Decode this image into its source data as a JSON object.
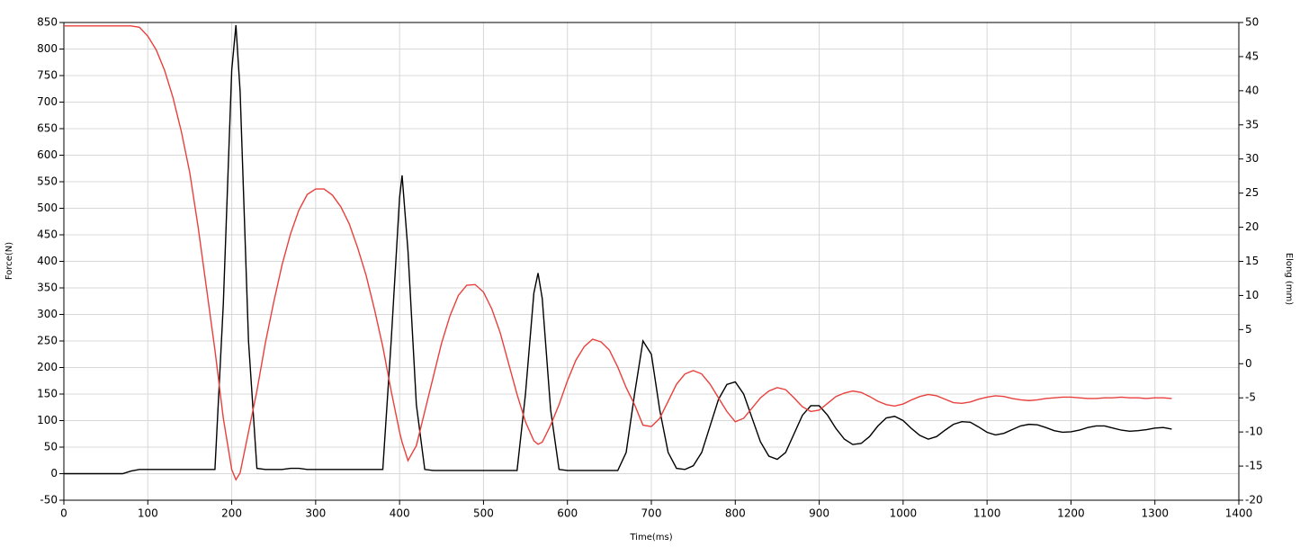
{
  "chart_data": {
    "type": "line",
    "xlabel": "Time(ms)",
    "ylabel": "Force(N)",
    "y2label": "Elong (mm)",
    "xlim": [
      0,
      1400
    ],
    "xticks": [
      0,
      100,
      200,
      300,
      400,
      500,
      600,
      700,
      800,
      900,
      1000,
      1100,
      1200,
      1300,
      1400
    ],
    "ylim": [
      -50,
      850
    ],
    "yticks": [
      -50,
      0,
      50,
      100,
      150,
      200,
      250,
      300,
      350,
      400,
      450,
      500,
      550,
      600,
      650,
      700,
      750,
      800,
      850
    ],
    "y2lim": [
      -20,
      50
    ],
    "y2ticks": [
      -20,
      -15,
      -10,
      -5,
      0,
      5,
      10,
      15,
      20,
      25,
      30,
      35,
      40,
      45,
      50
    ],
    "grid": true,
    "x": [
      0,
      10,
      20,
      30,
      40,
      50,
      60,
      70,
      80,
      90,
      100,
      110,
      120,
      130,
      140,
      150,
      160,
      170,
      180,
      190,
      200,
      205,
      210,
      220,
      230,
      240,
      250,
      260,
      270,
      280,
      290,
      300,
      310,
      320,
      330,
      340,
      350,
      360,
      370,
      380,
      390,
      400,
      403,
      410,
      420,
      430,
      440,
      450,
      460,
      470,
      480,
      490,
      500,
      510,
      520,
      530,
      540,
      550,
      560,
      565,
      570,
      580,
      590,
      600,
      610,
      620,
      630,
      640,
      650,
      660,
      670,
      680,
      690,
      700,
      710,
      720,
      730,
      740,
      750,
      760,
      770,
      780,
      790,
      800,
      810,
      820,
      830,
      840,
      850,
      860,
      870,
      880,
      890,
      900,
      910,
      920,
      930,
      940,
      950,
      960,
      970,
      980,
      990,
      1000,
      1010,
      1020,
      1030,
      1040,
      1050,
      1060,
      1070,
      1080,
      1090,
      1100,
      1110,
      1120,
      1130,
      1140,
      1150,
      1160,
      1170,
      1180,
      1190,
      1200,
      1210,
      1220,
      1230,
      1240,
      1250,
      1260,
      1270,
      1280,
      1290,
      1300,
      1310,
      1320
    ],
    "series": [
      {
        "color": "#000000",
        "axis": "y",
        "values": [
          0,
          0,
          0,
          0,
          0,
          0,
          0,
          0,
          5,
          8,
          8,
          8,
          8,
          8,
          8,
          8,
          8,
          8,
          8,
          320,
          760,
          845,
          720,
          250,
          10,
          8,
          8,
          8,
          10,
          10,
          8,
          8,
          8,
          8,
          8,
          8,
          8,
          8,
          8,
          8,
          250,
          520,
          562,
          420,
          130,
          8,
          6,
          6,
          6,
          6,
          6,
          6,
          6,
          6,
          6,
          6,
          6,
          150,
          340,
          378,
          330,
          120,
          8,
          6,
          6,
          6,
          6,
          6,
          6,
          6,
          40,
          150,
          250,
          225,
          120,
          40,
          10,
          8,
          15,
          40,
          90,
          140,
          168,
          173,
          150,
          105,
          60,
          33,
          27,
          40,
          75,
          110,
          128,
          128,
          110,
          85,
          65,
          55,
          57,
          70,
          90,
          105,
          108,
          100,
          85,
          72,
          65,
          70,
          82,
          93,
          98,
          97,
          88,
          78,
          73,
          76,
          83,
          90,
          93,
          92,
          87,
          81,
          78,
          79,
          82,
          87,
          90,
          90,
          86,
          82,
          80,
          81,
          83,
          86,
          87,
          84
        ]
      },
      {
        "color": "#e8403c",
        "axis": "y2",
        "values": [
          49.5,
          49.5,
          49.5,
          49.5,
          49.5,
          49.5,
          49.5,
          49.5,
          49.5,
          49.3,
          48,
          46,
          43,
          39,
          34,
          28,
          20,
          11,
          2,
          -8,
          -15.5,
          -17,
          -16,
          -10,
          -4,
          3,
          9,
          14.5,
          19,
          22.5,
          24.8,
          25.6,
          25.6,
          24.7,
          23,
          20.5,
          17,
          13,
          8,
          2.5,
          -4,
          -10,
          -11.5,
          -14.2,
          -12,
          -7,
          -2,
          3,
          7,
          10,
          11.5,
          11.6,
          10.5,
          8,
          4.5,
          0,
          -4.5,
          -8.5,
          -11.3,
          -11.8,
          -11.5,
          -9,
          -6,
          -2.5,
          0.5,
          2.5,
          3.6,
          3.2,
          2,
          -0.5,
          -3.5,
          -6,
          -9,
          -9.2,
          -8,
          -5.5,
          -3,
          -1.5,
          -1,
          -1.5,
          -3,
          -5,
          -7,
          -8.5,
          -8,
          -6.5,
          -5,
          -4,
          -3.5,
          -3.8,
          -5,
          -6.3,
          -7,
          -6.8,
          -5.8,
          -4.8,
          -4.3,
          -4,
          -4.2,
          -4.8,
          -5.5,
          -6,
          -6.2,
          -5.9,
          -5.3,
          -4.8,
          -4.5,
          -4.7,
          -5.2,
          -5.7,
          -5.8,
          -5.6,
          -5.2,
          -4.9,
          -4.7,
          -4.8,
          -5.1,
          -5.3,
          -5.4,
          -5.3,
          -5.1,
          -5,
          -4.9,
          -4.9,
          -5,
          -5.1,
          -5.1,
          -5,
          -5,
          -4.9,
          -5,
          -5,
          -5.1,
          -5,
          -5,
          -5.1
        ]
      }
    ]
  }
}
